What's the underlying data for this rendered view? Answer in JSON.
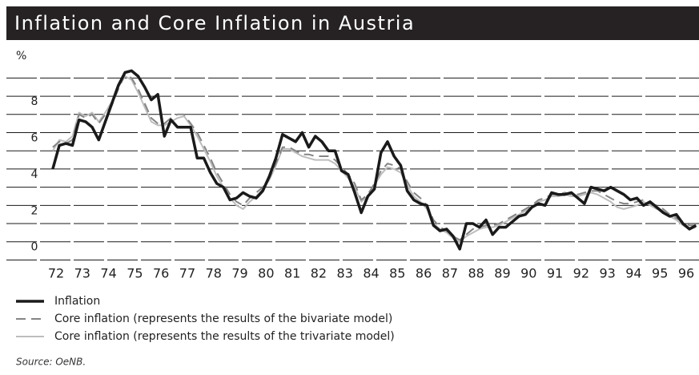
{
  "chart_data": {
    "type": "line",
    "title": "Inflation and Core Inflation in Austria",
    "y_label": "%",
    "source": "Source: OeNB.",
    "xlim": [
      72,
      96
    ],
    "xticks": [
      72,
      73,
      74,
      75,
      76,
      77,
      78,
      79,
      80,
      81,
      82,
      83,
      84,
      85,
      86,
      87,
      88,
      89,
      90,
      91,
      92,
      93,
      94,
      95,
      96
    ],
    "ylim": [
      -1.2,
      9.5
    ],
    "yticks": [
      0,
      2,
      4,
      6,
      8
    ],
    "minor_yticks": [
      -1,
      1,
      3,
      5,
      7,
      9
    ],
    "grid": true,
    "x": [
      71.875,
      72.125,
      72.375,
      72.625,
      72.875,
      73.125,
      73.375,
      73.625,
      73.875,
      74.125,
      74.375,
      74.625,
      74.875,
      75.125,
      75.375,
      75.625,
      75.875,
      76.125,
      76.375,
      76.625,
      76.875,
      77.125,
      77.375,
      77.625,
      77.875,
      78.125,
      78.375,
      78.625,
      78.875,
      79.125,
      79.375,
      79.625,
      79.875,
      80.125,
      80.375,
      80.625,
      80.875,
      81.125,
      81.375,
      81.625,
      81.875,
      82.125,
      82.375,
      82.625,
      82.875,
      83.125,
      83.375,
      83.625,
      83.875,
      84.125,
      84.375,
      84.625,
      84.875,
      85.125,
      85.375,
      85.625,
      85.875,
      86.125,
      86.375,
      86.625,
      86.875,
      87.125,
      87.375,
      87.625,
      87.875,
      88.125,
      88.375,
      88.625,
      88.875,
      89.125,
      89.375,
      89.625,
      89.875,
      90.125,
      90.375,
      90.625,
      90.875,
      91.125,
      91.375,
      91.625,
      91.875,
      92.125,
      92.375,
      92.625,
      92.875,
      93.125,
      93.375,
      93.625,
      93.875,
      94.125,
      94.375,
      94.625,
      94.875,
      95.125,
      95.375,
      95.625,
      95.875,
      96.125,
      96.375
    ],
    "series": [
      {
        "name": "Core inflation (represents the results of the trivariate model)",
        "color": "#bdbdbd",
        "dashed": false,
        "width": 2,
        "values": [
          5.0,
          5.6,
          5.5,
          5.8,
          7.1,
          6.9,
          7.1,
          6.6,
          7.1,
          7.7,
          8.5,
          9.1,
          8.9,
          8.2,
          7.4,
          6.6,
          6.4,
          6.4,
          6.6,
          6.8,
          6.9,
          6.4,
          5.8,
          5.1,
          4.4,
          3.6,
          3.0,
          2.4,
          2.0,
          1.8,
          2.2,
          2.5,
          2.9,
          3.4,
          4.2,
          5.1,
          5.1,
          4.9,
          4.7,
          4.6,
          4.5,
          4.5,
          4.5,
          4.3,
          3.9,
          3.5,
          3.0,
          2.2,
          2.5,
          3.1,
          3.7,
          4.1,
          4.0,
          3.8,
          3.1,
          2.5,
          2.2,
          1.8,
          1.0,
          0.7,
          0.5,
          0.2,
          0.0,
          0.3,
          0.5,
          0.7,
          0.8,
          0.8,
          0.9,
          1.1,
          1.3,
          1.5,
          1.7,
          1.9,
          2.2,
          2.3,
          2.5,
          2.5,
          2.6,
          2.5,
          2.5,
          2.6,
          2.7,
          2.6,
          2.4,
          2.2,
          1.9,
          1.8,
          1.9,
          2.0,
          2.2,
          2.0,
          1.8,
          1.7,
          1.4,
          1.2,
          0.9,
          0.7,
          0.8
        ]
      },
      {
        "name": "Core inflation (represents the results of the bivariate model)",
        "color": "#858585",
        "dashed": true,
        "width": 2,
        "values": [
          5.2,
          5.5,
          5.4,
          5.6,
          7.0,
          6.8,
          7.0,
          6.5,
          7.0,
          7.5,
          8.4,
          9.2,
          9.0,
          8.4,
          7.6,
          6.8,
          6.5,
          6.5,
          6.8,
          7.0,
          7.0,
          6.5,
          6.0,
          5.3,
          4.6,
          3.8,
          3.2,
          2.6,
          2.2,
          2.0,
          2.4,
          2.7,
          3.0,
          3.5,
          4.3,
          5.2,
          5.2,
          5.0,
          4.8,
          4.8,
          4.7,
          4.7,
          4.7,
          4.5,
          4.1,
          3.7,
          3.2,
          2.3,
          2.6,
          3.2,
          3.9,
          4.3,
          4.2,
          4.0,
          3.3,
          2.7,
          2.4,
          2.0,
          1.2,
          0.8,
          0.6,
          0.3,
          0.1,
          0.4,
          0.7,
          0.8,
          0.9,
          0.9,
          1.0,
          1.2,
          1.4,
          1.6,
          1.8,
          2.0,
          2.3,
          2.4,
          2.6,
          2.6,
          2.7,
          2.6,
          2.6,
          2.7,
          2.8,
          2.8,
          2.6,
          2.4,
          2.2,
          2.1,
          2.1,
          2.2,
          2.3,
          2.1,
          2.0,
          1.8,
          1.5,
          1.3,
          1.1,
          0.9,
          0.9
        ]
      },
      {
        "name": "Inflation",
        "color": "#1a1a1a",
        "dashed": false,
        "width": 3.5,
        "values": [
          4.0,
          5.3,
          5.4,
          5.3,
          6.7,
          6.6,
          6.3,
          5.6,
          6.6,
          7.6,
          8.6,
          9.3,
          9.4,
          9.1,
          8.5,
          7.8,
          8.1,
          5.8,
          6.7,
          6.3,
          6.3,
          6.3,
          4.6,
          4.6,
          3.8,
          3.2,
          3.0,
          2.3,
          2.4,
          2.7,
          2.5,
          2.4,
          2.8,
          3.6,
          4.6,
          5.9,
          5.7,
          5.5,
          6.0,
          5.2,
          5.8,
          5.5,
          5.0,
          5.0,
          3.9,
          3.7,
          2.7,
          1.6,
          2.5,
          2.9,
          4.9,
          5.5,
          4.7,
          4.2,
          2.8,
          2.3,
          2.1,
          2.0,
          0.9,
          0.6,
          0.7,
          0.3,
          -0.4,
          1.0,
          1.0,
          0.8,
          1.2,
          0.4,
          0.8,
          0.8,
          1.1,
          1.4,
          1.5,
          1.9,
          2.1,
          2.0,
          2.7,
          2.6,
          2.6,
          2.7,
          2.4,
          2.1,
          3.0,
          2.9,
          2.8,
          3.0,
          2.8,
          2.6,
          2.3,
          2.4,
          2.0,
          2.2,
          1.9,
          1.6,
          1.4,
          1.5,
          1.0,
          0.7,
          0.9
        ]
      }
    ],
    "legend_order": [
      2,
      1,
      0
    ]
  }
}
